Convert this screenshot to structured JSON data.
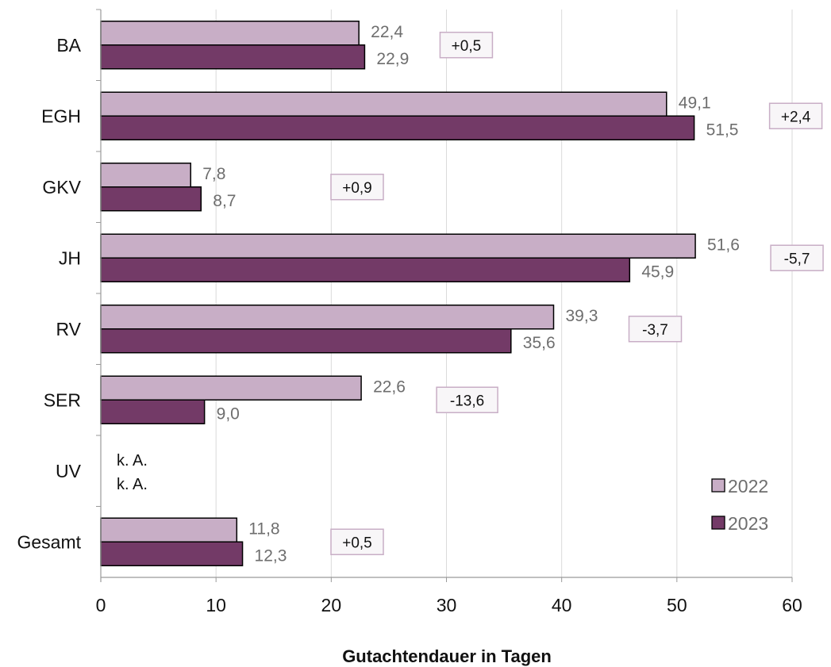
{
  "chart_data": {
    "type": "bar",
    "orientation": "horizontal",
    "categories": [
      "BA",
      "EGH",
      "GKV",
      "JH",
      "RV",
      "SER",
      "UV",
      "Gesamt"
    ],
    "series": [
      {
        "name": "2022",
        "color": "#c8aec6",
        "values": [
          22.4,
          49.1,
          7.8,
          51.6,
          39.3,
          22.6,
          null,
          11.8
        ],
        "labels": [
          "22,4",
          "49,1",
          "7,8",
          "51,6",
          "39,3",
          "22,6",
          "k. A.",
          "11,8"
        ]
      },
      {
        "name": "2023",
        "color": "#733a67",
        "values": [
          22.9,
          51.5,
          8.7,
          45.9,
          35.6,
          9.0,
          null,
          12.3
        ],
        "labels": [
          "22,9",
          "51,5",
          "8,7",
          "45,9",
          "35,6",
          "9,0",
          "k. A.",
          "12,3"
        ]
      }
    ],
    "differences": [
      "+0,5",
      "+2,4",
      "+0,9",
      "-5,7",
      "-3,7",
      "-13,6",
      "",
      "+0,5"
    ],
    "xlabel": "Gutachtendauer in Tagen",
    "xlim": [
      0,
      60
    ],
    "xticks": [
      "0",
      "10",
      "20",
      "30",
      "40",
      "50",
      "60"
    ],
    "grid": "vertical",
    "legend_position": "bottom-right"
  }
}
